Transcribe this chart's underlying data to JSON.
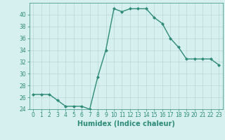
{
  "x": [
    0,
    1,
    2,
    3,
    4,
    5,
    6,
    7,
    8,
    9,
    10,
    11,
    12,
    13,
    14,
    15,
    16,
    17,
    18,
    19,
    20,
    21,
    22,
    23
  ],
  "y": [
    26.5,
    26.5,
    26.5,
    25.5,
    24.5,
    24.5,
    24.5,
    24.0,
    29.5,
    34.0,
    41.0,
    40.5,
    41.0,
    41.0,
    41.0,
    39.5,
    38.5,
    36.0,
    34.5,
    32.5,
    32.5,
    32.5,
    32.5,
    31.5
  ],
  "line_color": "#2e8b77",
  "marker": "D",
  "markersize": 2.0,
  "linewidth": 1.0,
  "xlabel": "Humidex (Indice chaleur)",
  "ylim": [
    24,
    42
  ],
  "xlim": [
    -0.5,
    23.5
  ],
  "yticks": [
    24,
    26,
    28,
    30,
    32,
    34,
    36,
    38,
    40
  ],
  "xticks": [
    0,
    1,
    2,
    3,
    4,
    5,
    6,
    7,
    8,
    9,
    10,
    11,
    12,
    13,
    14,
    15,
    16,
    17,
    18,
    19,
    20,
    21,
    22,
    23
  ],
  "background_color": "#d6f0f0",
  "grid_color": "#b8d8d8",
  "tick_label_color": "#2e8b77",
  "xlabel_color": "#2e8b77",
  "xlabel_fontsize": 7,
  "tick_fontsize": 5.5
}
